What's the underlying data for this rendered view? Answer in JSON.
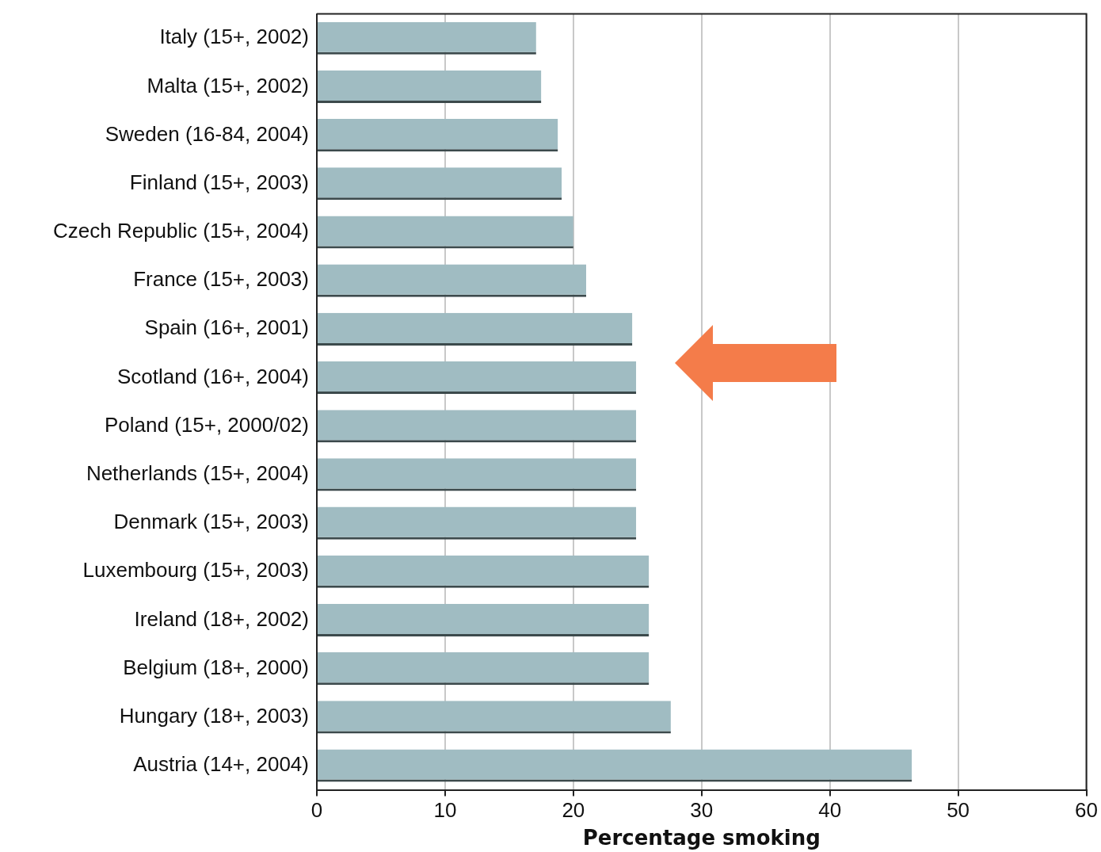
{
  "chart_data": {
    "type": "bar",
    "orientation": "horizontal",
    "xlabel": "Percentage smoking",
    "categories": [
      "Italy (15+, 2002)",
      "Malta (15+, 2002)",
      "Sweden (16-84, 2004)",
      "Finland (15+, 2003)",
      "Czech Republic (15+, 2004)",
      "France (15+, 2003)",
      "Spain (16+, 2001)",
      "Scotland (16+, 2004)",
      "Poland (15+, 2000/02)",
      "Netherlands (15+, 2004)",
      "Denmark (15+, 2003)",
      "Luxembourg (15+, 2003)",
      "Ireland (18+, 2002)",
      "Belgium (18+, 2000)",
      "Hungary (18+, 2003)",
      "Austria (14+, 2004)"
    ],
    "values": [
      17.1,
      17.5,
      18.8,
      19.1,
      20.0,
      21.0,
      24.6,
      24.9,
      24.9,
      24.9,
      24.9,
      25.9,
      25.9,
      25.9,
      27.6,
      46.4
    ],
    "color": "#a0bcc2",
    "xlim": [
      0,
      60
    ],
    "xticks": [
      0,
      10,
      20,
      30,
      40,
      50,
      60
    ],
    "grid": "x",
    "legend": false
  }
}
